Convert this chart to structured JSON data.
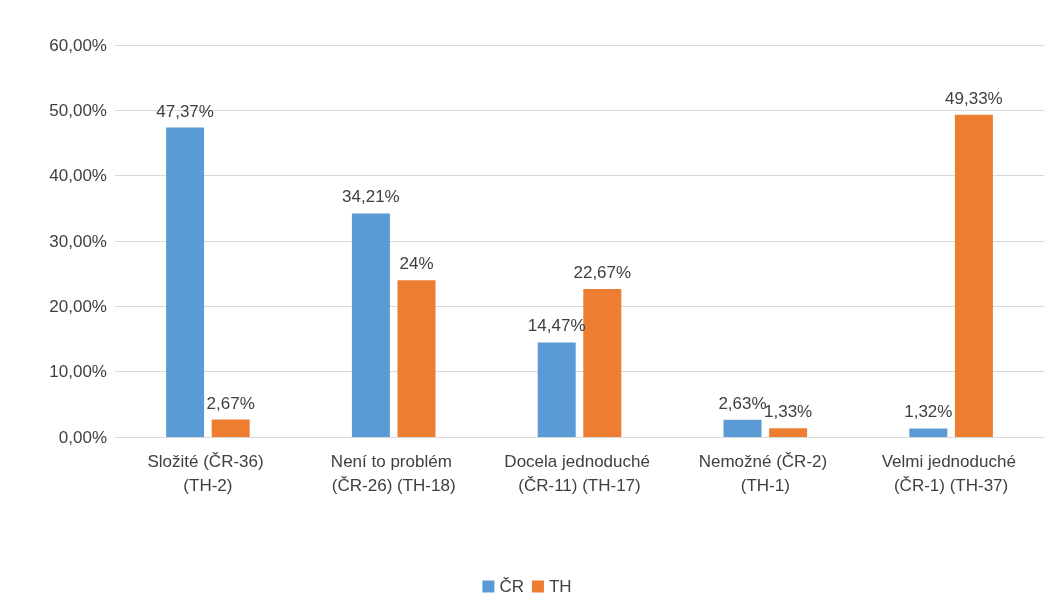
{
  "chart_data": {
    "type": "bar",
    "categories": [
      "Složité (ČR-36) (TH-2)",
      "Není to problém (ČR-26) (TH-18)",
      "Docela jednoduché (ČR-11) (TH-17)",
      "Nemožné (ČR-2) (TH-1)",
      "Velmi jednoduché (ČR-1) (TH-37)"
    ],
    "series": [
      {
        "name": "ČR",
        "color": "#5b9bd5",
        "values": [
          47.37,
          34.21,
          14.47,
          2.63,
          1.32
        ],
        "value_labels": [
          "47,37%",
          "34,21%",
          "14,47%",
          "2,63%",
          "1,32%"
        ]
      },
      {
        "name": "TH",
        "color": "#ed7d31",
        "values": [
          2.67,
          24,
          22.67,
          1.33,
          49.33
        ],
        "value_labels": [
          "2,67%",
          "24%",
          "22,67%",
          "1,33%",
          "49,33%"
        ]
      }
    ],
    "ylim": [
      0,
      60
    ],
    "yticks": [
      {
        "value": 0,
        "label": "0,00%"
      },
      {
        "value": 10,
        "label": "10,00%"
      },
      {
        "value": 20,
        "label": "20,00%"
      },
      {
        "value": 30,
        "label": "30,00%"
      },
      {
        "value": 40,
        "label": "40,00%"
      },
      {
        "value": 50,
        "label": "50,00%"
      },
      {
        "value": 60,
        "label": "60,00%"
      }
    ],
    "grid": "y",
    "legend": "bottom"
  }
}
